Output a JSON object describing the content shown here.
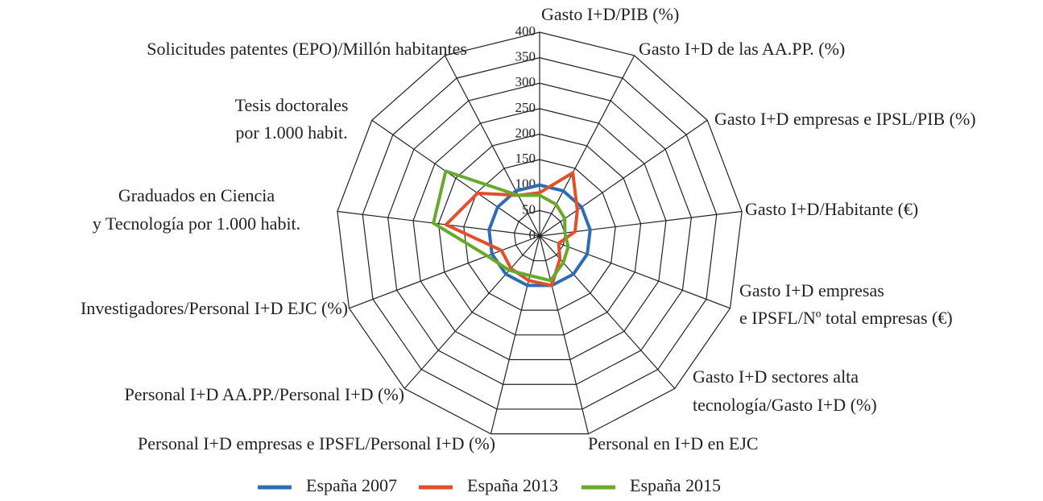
{
  "chart_data": {
    "type": "radar",
    "categories": [
      [
        "Gasto I+D/PIB (%)"
      ],
      [
        "Gasto I+D de las AA.PP. (%)"
      ],
      [
        "Gasto I+D empresas e IPSL/PIB (%)"
      ],
      [
        "Gasto I+D/Habitante (€)"
      ],
      [
        "Gasto I+D empresas",
        "e IPSFL/Nº total empresas (€)"
      ],
      [
        "Gasto I+D sectores alta",
        "tecnología/Gasto I+D (%)"
      ],
      [
        "Personal en I+D en EJC"
      ],
      [
        "Personal I+D empresas e IPSFL/Personal I+D (%)"
      ],
      [
        "Personal I+D AA.PP./Personal I+D (%)"
      ],
      [
        "Investigadores/Personal I+D EJC (%)"
      ],
      [
        "Graduados en Ciencia",
        "y Tecnología por 1.000 habit."
      ],
      [
        "Tesis doctorales",
        "por 1.000 habit."
      ],
      [
        "Solicitudes patentes (EPO)/Millón habitantes"
      ]
    ],
    "series": [
      {
        "name": "España 2007",
        "color": "#2e6db4",
        "values": [
          100,
          100,
          100,
          100,
          100,
          100,
          100,
          100,
          100,
          100,
          100,
          100,
          100
        ]
      },
      {
        "name": "España 2013",
        "color": "#e2502a",
        "values": [
          85,
          140,
          90,
          70,
          40,
          60,
          100,
          90,
          85,
          80,
          185,
          148,
          90
        ]
      },
      {
        "name": "España 2015",
        "color": "#68a82a",
        "values": [
          80,
          70,
          60,
          50,
          60,
          70,
          90,
          80,
          90,
          110,
          210,
          224,
          90
        ]
      }
    ],
    "ylim": [
      0,
      400
    ],
    "yticks": [
      0,
      50,
      100,
      150,
      200,
      250,
      300,
      350,
      400
    ],
    "grid": true
  }
}
